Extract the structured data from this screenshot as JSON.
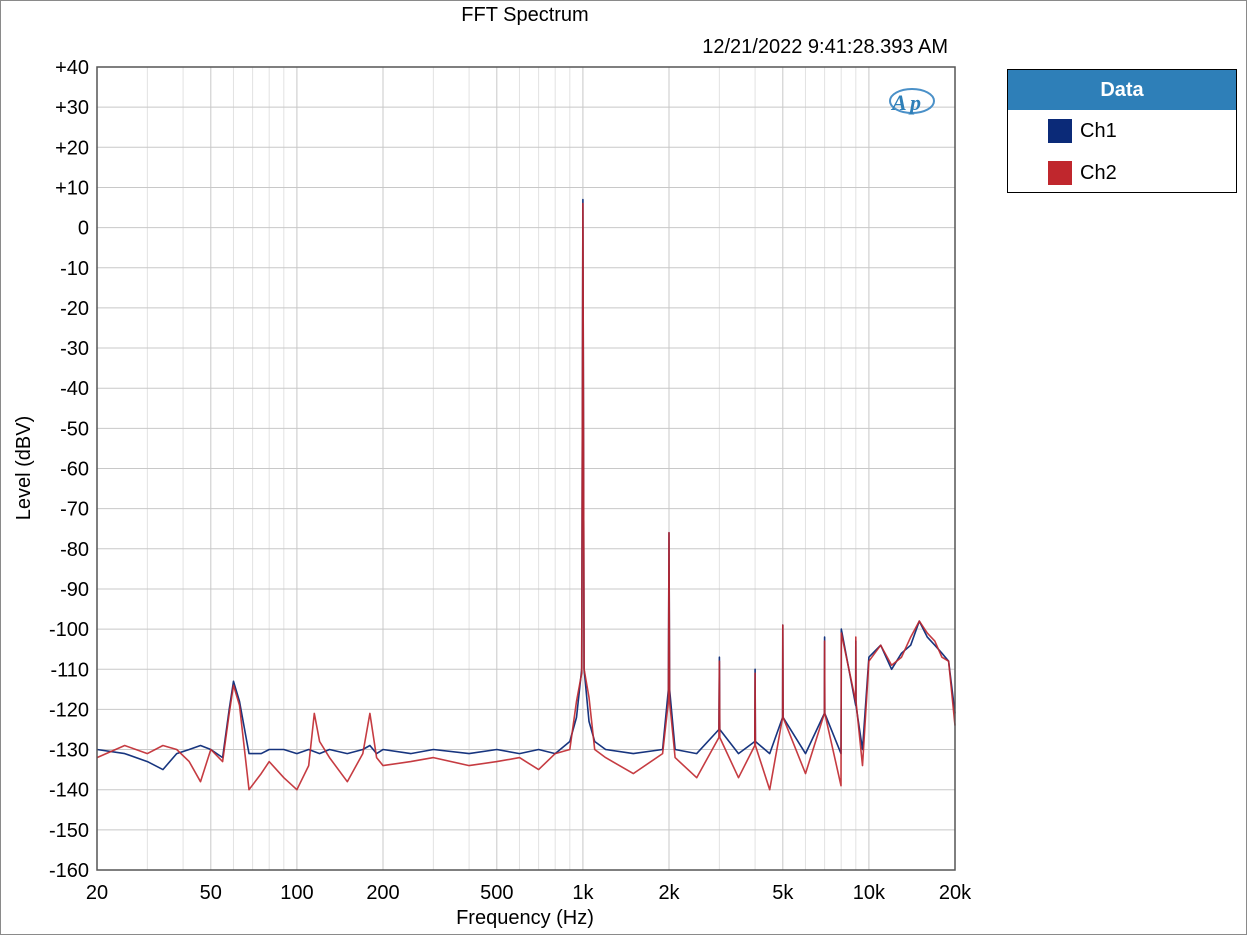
{
  "chart_data": {
    "type": "line",
    "title": "FFT Spectrum",
    "timestamp": "12/21/2022 9:41:28.393 AM",
    "xlabel": "Frequency (Hz)",
    "ylabel": "Level (dBV)",
    "x_scale": "log",
    "xlim": [
      20,
      20000
    ],
    "ylim": [
      -160,
      40
    ],
    "x_ticks": [
      20,
      50,
      100,
      200,
      500,
      1000,
      2000,
      5000,
      10000,
      20000
    ],
    "x_tick_labels": [
      "20",
      "50",
      "100",
      "200",
      "500",
      "1k",
      "2k",
      "5k",
      "10k",
      "20k"
    ],
    "y_ticks": [
      40,
      30,
      20,
      10,
      0,
      -10,
      -20,
      -30,
      -40,
      -50,
      -60,
      -70,
      -80,
      -90,
      -100,
      -110,
      -120,
      -130,
      -140,
      -150,
      -160
    ],
    "y_tick_labels": [
      "+40",
      "+30",
      "+20",
      "+10",
      "0",
      "-10",
      "-20",
      "-30",
      "-40",
      "-50",
      "-60",
      "-70",
      "-80",
      "-90",
      "-100",
      "-110",
      "-120",
      "-130",
      "-140",
      "-150",
      "-160"
    ],
    "grid": true,
    "legend_title": "Data",
    "legend_position": "outside-right",
    "logo_text": "AP",
    "series": [
      {
        "name": "Ch1",
        "color": "#0b2a78",
        "x": [
          20,
          25,
          30,
          34,
          38,
          42,
          46,
          50,
          55,
          58,
          60,
          63,
          68,
          75,
          80,
          90,
          100,
          110,
          120,
          130,
          150,
          170,
          180,
          190,
          200,
          250,
          300,
          400,
          500,
          600,
          700,
          800,
          900,
          950,
          990,
          1000,
          1010,
          1050,
          1100,
          1200,
          1500,
          1900,
          1990,
          2000,
          2010,
          2100,
          2500,
          2990,
          3000,
          3010,
          3500,
          3990,
          4000,
          4010,
          4500,
          4990,
          5000,
          5010,
          6000,
          6990,
          7000,
          7010,
          7990,
          8000,
          8010,
          8990,
          9000,
          9010,
          9500,
          10000,
          11000,
          12000,
          13000,
          14000,
          15000,
          16000,
          17000,
          18000,
          19000,
          20000
        ],
        "y": [
          -130,
          -131,
          -133,
          -135,
          -131,
          -130,
          -129,
          -130,
          -132,
          -120,
          -113,
          -118,
          -131,
          -131,
          -130,
          -130,
          -131,
          -130,
          -131,
          -130,
          -131,
          -130,
          -129,
          -131,
          -130,
          -131,
          -130,
          -131,
          -130,
          -131,
          -130,
          -131,
          -128,
          -122,
          -110,
          7,
          -110,
          -123,
          -128,
          -130,
          -131,
          -130,
          -115,
          -76,
          -115,
          -130,
          -131,
          -125,
          -107,
          -125,
          -131,
          -128,
          -110,
          -128,
          -131,
          -122,
          -99,
          -122,
          -131,
          -121,
          -102,
          -121,
          -131,
          -118,
          -100,
          -119,
          -103,
          -119,
          -130,
          -107,
          -104,
          -110,
          -106,
          -104,
          -98,
          -102,
          -104,
          -106,
          -108,
          -121
        ]
      },
      {
        "name": "Ch2",
        "color": "#c0272d",
        "x": [
          20,
          25,
          30,
          34,
          38,
          42,
          46,
          50,
          55,
          58,
          60,
          63,
          68,
          75,
          80,
          90,
          100,
          110,
          115,
          120,
          130,
          150,
          170,
          180,
          190,
          200,
          250,
          300,
          400,
          500,
          600,
          700,
          800,
          900,
          950,
          990,
          1000,
          1010,
          1050,
          1100,
          1200,
          1500,
          1900,
          1990,
          2000,
          2010,
          2100,
          2500,
          2990,
          3000,
          3010,
          3500,
          3990,
          4000,
          4010,
          4500,
          4990,
          5000,
          5010,
          6000,
          6990,
          7000,
          7010,
          7990,
          8000,
          8010,
          8990,
          9000,
          9010,
          9500,
          10000,
          11000,
          12000,
          13000,
          14000,
          15000,
          16000,
          17000,
          18000,
          19000,
          20000
        ],
        "y": [
          -132,
          -129,
          -131,
          -129,
          -130,
          -133,
          -138,
          -130,
          -133,
          -121,
          -114,
          -119,
          -140,
          -136,
          -133,
          -137,
          -140,
          -134,
          -121,
          -128,
          -132,
          -138,
          -131,
          -121,
          -132,
          -134,
          -133,
          -132,
          -134,
          -133,
          -132,
          -135,
          -131,
          -130,
          -118,
          -111,
          6,
          -110,
          -117,
          -130,
          -132,
          -136,
          -131,
          -118,
          -76,
          -118,
          -132,
          -137,
          -127,
          -108,
          -127,
          -137,
          -129,
          -111,
          -129,
          -140,
          -122,
          -99,
          -122,
          -136,
          -121,
          -103,
          -121,
          -139,
          -117,
          -101,
          -118,
          -102,
          -118,
          -134,
          -108,
          -104,
          -109,
          -107,
          -102,
          -98,
          -101,
          -103,
          -107,
          -108,
          -124
        ]
      }
    ]
  }
}
